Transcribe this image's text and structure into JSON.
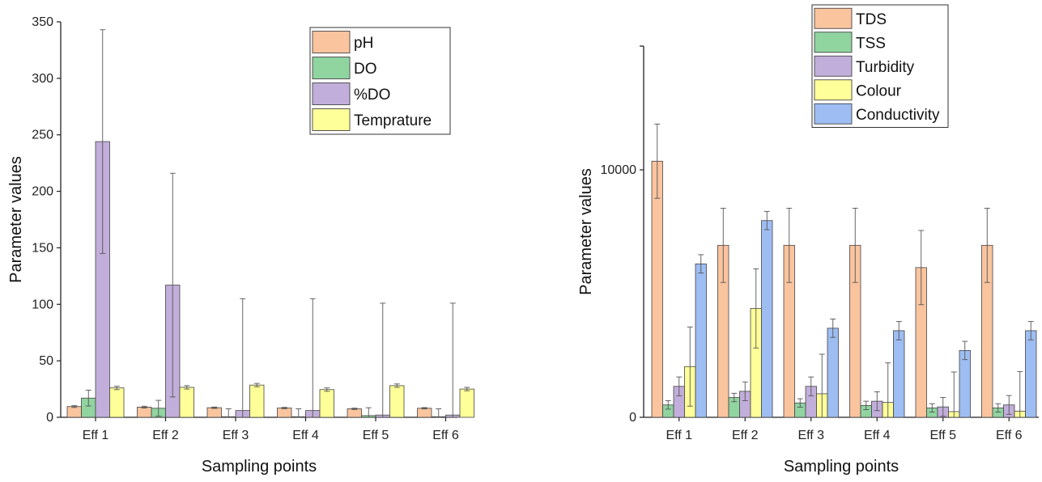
{
  "chart_data": [
    {
      "type": "bar",
      "xlabel": "Sampling points",
      "ylabel": "Parameter values",
      "ylim": [
        0,
        350
      ],
      "yticks": [
        0,
        50,
        100,
        150,
        200,
        250,
        300,
        350
      ],
      "categories": [
        "Eff 1",
        "Eff 2",
        "Eff 3",
        "Eff 4",
        "Eff 5",
        "Eff 6"
      ],
      "legend_position": "top-right",
      "series": [
        {
          "name": "pH",
          "color": "#F9C49E",
          "values": [
            9.5,
            9.0,
            8.5,
            8.2,
            7.5,
            8.0
          ],
          "err": [
            0.8,
            0.8,
            0.6,
            0.6,
            0.6,
            0.6
          ]
        },
        {
          "name": "DO",
          "color": "#90D4A0",
          "values": [
            17,
            8,
            0.5,
            0.5,
            1.5,
            0.5
          ],
          "err": [
            7,
            7,
            7,
            7,
            7,
            7
          ]
        },
        {
          "name": "%DO",
          "color": "#C2AEDB",
          "values": [
            244,
            117,
            6,
            6,
            2,
            2
          ],
          "err": [
            99,
            99,
            99,
            99,
            99,
            99
          ]
        },
        {
          "name": "Temprature",
          "color": "#FFFF99",
          "values": [
            26,
            26.5,
            28.5,
            24.5,
            28,
            25
          ],
          "err": [
            1.5,
            1.5,
            1.5,
            1.5,
            1.5,
            1.5
          ]
        }
      ]
    },
    {
      "type": "bar",
      "xlabel": "Sampling points",
      "ylabel": "Parameter values",
      "ylim": [
        0,
        15000
      ],
      "yticks": [
        0,
        10000
      ],
      "categories": [
        "Eff 1",
        "Eff 2",
        "Eff 3",
        "Eff 4",
        "Eff 5",
        "Eff 6"
      ],
      "legend_position": "top-right",
      "series": [
        {
          "name": "TDS",
          "color": "#F9C49E",
          "values": [
            10350,
            6950,
            6950,
            6950,
            6050,
            6950
          ],
          "err": [
            1500,
            1500,
            1500,
            1500,
            1500,
            1500
          ]
        },
        {
          "name": "TSS",
          "color": "#90D4A0",
          "values": [
            500,
            800,
            580,
            480,
            380,
            380
          ],
          "err": [
            170,
            170,
            170,
            170,
            170,
            170
          ]
        },
        {
          "name": "Turbidity",
          "color": "#C2AEDB",
          "values": [
            1250,
            1050,
            1250,
            650,
            420,
            500
          ],
          "err": [
            380,
            380,
            380,
            380,
            380,
            380
          ]
        },
        {
          "name": "Colour",
          "color": "#FFFF99",
          "values": [
            2050,
            4400,
            950,
            600,
            230,
            250
          ],
          "err": [
            1600,
            1600,
            1600,
            1600,
            1600,
            1600
          ]
        },
        {
          "name": "Conductivity",
          "color": "#9EBDF2",
          "values": [
            6200,
            7950,
            3600,
            3500,
            2700,
            3500
          ],
          "err": [
            370,
            370,
            370,
            370,
            370,
            370
          ]
        }
      ]
    }
  ]
}
